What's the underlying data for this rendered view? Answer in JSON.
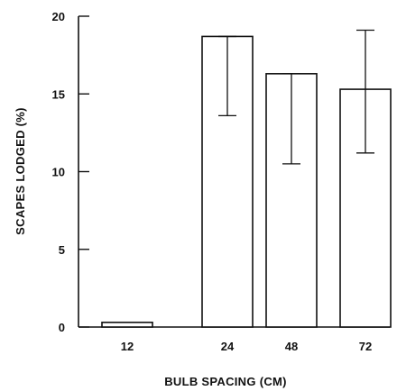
{
  "chart_data": {
    "type": "bar",
    "categories": [
      "12",
      "24",
      "48",
      "72"
    ],
    "values": [
      0.3,
      18.7,
      16.3,
      15.3
    ],
    "error_bars": [
      {
        "low": null,
        "high": null
      },
      {
        "low": 13.6,
        "high": 18.7
      },
      {
        "low": 10.5,
        "high": 16.3
      },
      {
        "low": 11.2,
        "high": 19.1
      }
    ],
    "title": "",
    "xlabel": "BULB SPACING (CM)",
    "ylabel": "SCAPES LODGED (%)",
    "ylim": [
      0,
      20
    ],
    "yticks": [
      "0",
      "5",
      "10",
      "15",
      "20"
    ],
    "grid": false
  }
}
